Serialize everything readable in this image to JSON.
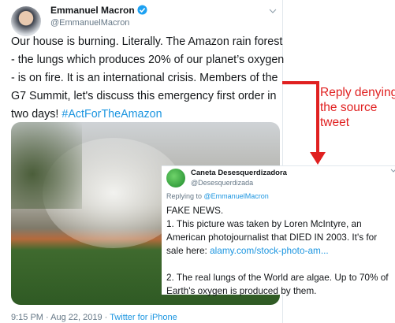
{
  "original_tweet": {
    "name": "Emmanuel Macron",
    "handle": "@EmmanuelMacron",
    "text_lines": [
      "Our house is burning. Literally. The Amazon rain forest",
      "- the lungs which produces 20% of our planet’s oxygen",
      "- is on fire. It is an international crisis. Members of the",
      "G7 Summit, let's discuss this emergency first order in",
      "two days!"
    ],
    "hashtag": "#ActForTheAmazon",
    "timestamp": "9:15 PM · Aug 22, 2019",
    "separator": "·",
    "source": "Twitter for iPhone"
  },
  "annotation": {
    "lines": [
      "Reply denying",
      "the source",
      "tweet"
    ]
  },
  "reply_tweet": {
    "name": "Caneta Desesquerdizadora",
    "handle": "@Desesquerdizada",
    "replying_to": "Replying to",
    "replying_to_handle": "@EmmanuelMacron",
    "lines": [
      "FAKE NEWS.",
      "1. This picture was taken by Loren McIntyre, an",
      "American photojournalist that DIED IN 2003. It's for",
      "sale here:"
    ],
    "link": "alamy.com/stock-photo-am...",
    "lines2": [
      "2. The real lungs of the World are algae. Up to 70% of",
      "Earth's oxygen is produced by them."
    ]
  }
}
